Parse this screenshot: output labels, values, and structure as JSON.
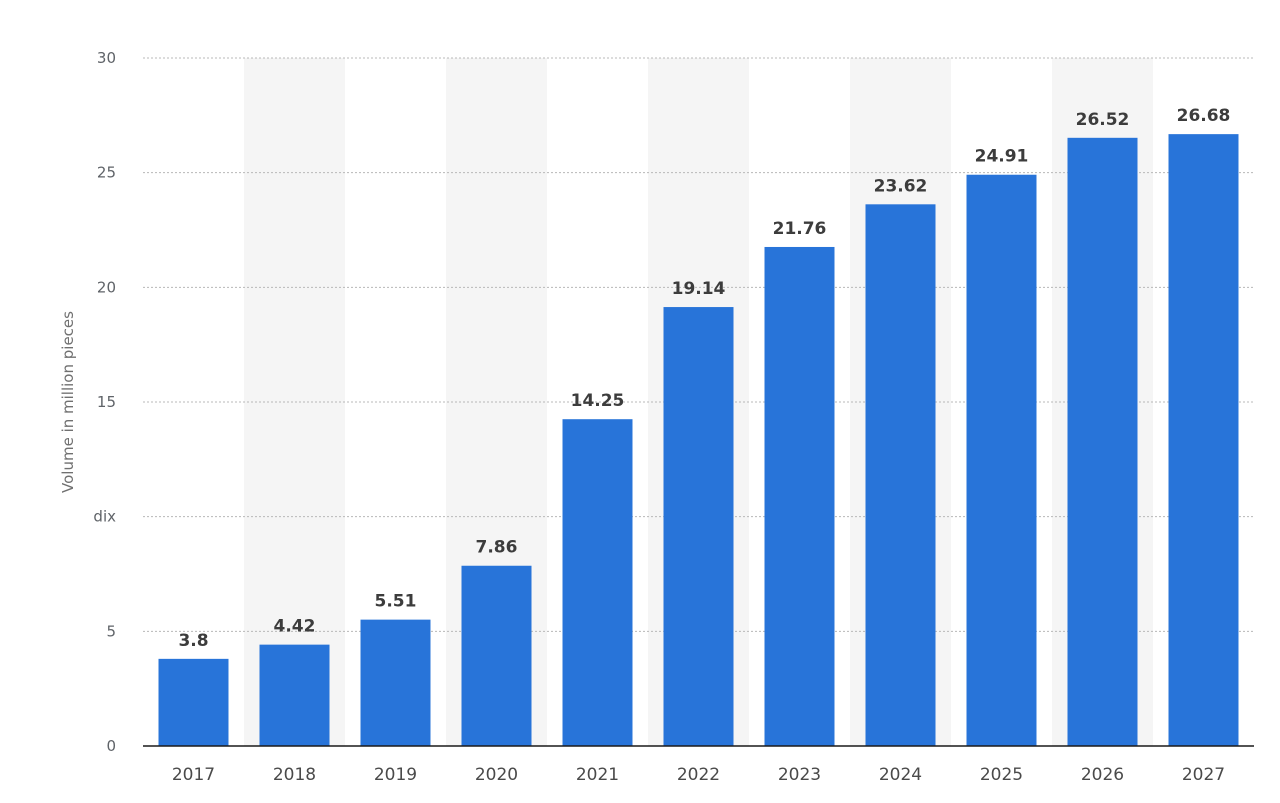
{
  "chart_data": {
    "type": "bar",
    "categories": [
      "2017",
      "2018",
      "2019",
      "2020",
      "2021",
      "2022",
      "2023",
      "2024",
      "2025",
      "2026",
      "2027"
    ],
    "values": [
      3.8,
      4.42,
      5.51,
      7.86,
      14.25,
      19.14,
      21.76,
      23.62,
      24.91,
      26.52,
      26.68
    ],
    "value_labels": [
      "3.8",
      "4.42",
      "5.51",
      "7.86",
      "14.25",
      "19.14",
      "21.76",
      "23.62",
      "24.91",
      "26.52",
      "26.68"
    ],
    "ylabel": "Volume in million pieces",
    "xlabel": "",
    "ylim": [
      0,
      30
    ],
    "yticks": [
      0,
      5,
      10,
      15,
      20,
      25,
      30
    ],
    "ytick_labels": [
      "0",
      "5",
      "dix",
      "15",
      "20",
      "25",
      "30"
    ],
    "grid": true,
    "alternating_column_shading": true,
    "colors": {
      "bar": "#2874d9",
      "grid": "#b8b8b8",
      "column_shade": "#f5f5f5",
      "axis": "#1a1a1a"
    }
  }
}
